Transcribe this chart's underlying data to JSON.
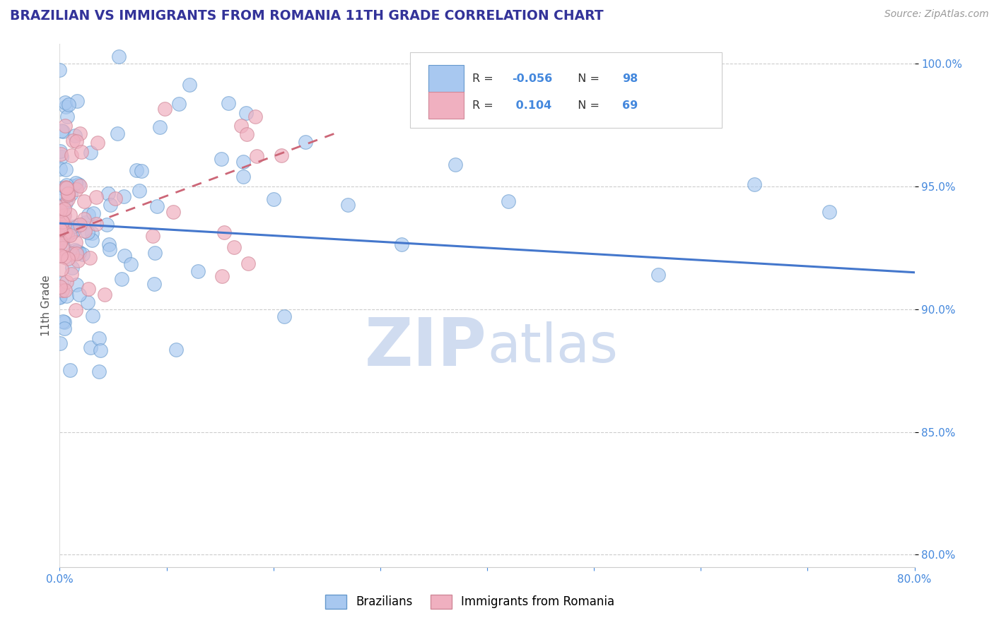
{
  "title": "BRAZILIAN VS IMMIGRANTS FROM ROMANIA 11TH GRADE CORRELATION CHART",
  "source_text": "Source: ZipAtlas.com",
  "ylabel": "11th Grade",
  "xlim": [
    0.0,
    0.8
  ],
  "ylim": [
    0.795,
    1.008
  ],
  "xticks": [
    0.0,
    0.1,
    0.2,
    0.3,
    0.4,
    0.5,
    0.6,
    0.7,
    0.8
  ],
  "xticklabels": [
    "0.0%",
    "",
    "",
    "",
    "",
    "",
    "",
    "",
    "80.0%"
  ],
  "yticks": [
    0.8,
    0.85,
    0.9,
    0.95,
    1.0
  ],
  "yticklabels": [
    "80.0%",
    "85.0%",
    "90.0%",
    "95.0%",
    "100.0%"
  ],
  "r_blue": -0.056,
  "n_blue": 98,
  "r_pink": 0.104,
  "n_pink": 69,
  "legend_labels": [
    "Brazilians",
    "Immigrants from Romania"
  ],
  "blue_scatter_color": "#A8C8F0",
  "blue_edge_color": "#6699CC",
  "pink_scatter_color": "#F0B0C0",
  "pink_edge_color": "#D08898",
  "blue_line_color": "#4477CC",
  "pink_line_color": "#CC6677",
  "title_color": "#333399",
  "watermark_color": "#D0DCF0",
  "grid_color": "#CCCCCC",
  "background_color": "#FFFFFF",
  "blue_trend_x0": 0.0,
  "blue_trend_y0": 0.935,
  "blue_trend_x1": 0.8,
  "blue_trend_y1": 0.915,
  "pink_trend_x0": 0.0,
  "pink_trend_y0": 0.93,
  "pink_trend_x1": 0.26,
  "pink_trend_y1": 0.972
}
